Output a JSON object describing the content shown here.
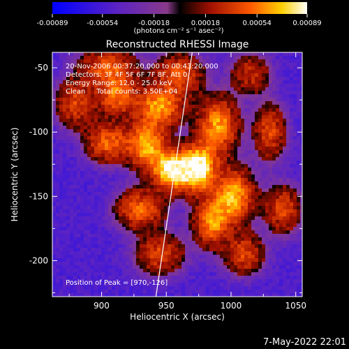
{
  "chart_data": {
    "type": "heatmap",
    "title": "Reconstructed RHESSI Image",
    "xlabel": "Heliocentric X (arcsec)",
    "ylabel": "Heliocentric Y (arcsec)",
    "xlim": [
      862,
      1055
    ],
    "ylim": [
      -228,
      -38
    ],
    "xticks": [
      900,
      950,
      1000,
      1050
    ],
    "xtick_labels": [
      "900",
      "950",
      "1000",
      "1050"
    ],
    "yticks": [
      -50,
      -100,
      -150,
      -200
    ],
    "ytick_labels": [
      "-50",
      "-100",
      "-150",
      "-200"
    ],
    "colorbar": {
      "min": -0.00089,
      "max": 0.00089,
      "ticks": [
        -0.00089,
        -0.00054,
        -0.00018,
        0.00018,
        0.00054,
        0.00089
      ],
      "tick_labels": [
        "-0.00089",
        "-0.00054",
        "-0.00018",
        "0.00018",
        "0.00054",
        "0.00089"
      ],
      "unit_label": "(photons cm⁻² s⁻¹ asec⁻²)"
    },
    "annotations": [
      "20-Nov-2006 00:37:20.000 to 00:43:20.000",
      "Detectors: 3F 4F 5F 6F 7F 8F, Att 0",
      "Energy Range: 12.0 - 25.0 keV",
      "Clean     Total counts: 3.50E+04"
    ],
    "peak_label": "Position of Peak = [970,-126]",
    "peak": [
      970,
      -126
    ],
    "sources": [
      {
        "x": 955,
        "y": -130,
        "amp": 1.0,
        "sx": 10,
        "sy": 10
      },
      {
        "x": 975,
        "y": -128,
        "amp": 1.0,
        "sx": 9,
        "sy": 12
      },
      {
        "x": 935,
        "y": -110,
        "amp": 0.75,
        "sx": 10,
        "sy": 12
      },
      {
        "x": 945,
        "y": -80,
        "amp": 0.7,
        "sx": 12,
        "sy": 10
      },
      {
        "x": 912,
        "y": -72,
        "amp": 0.55,
        "sx": 10,
        "sy": 10
      },
      {
        "x": 905,
        "y": -108,
        "amp": 0.55,
        "sx": 11,
        "sy": 10
      },
      {
        "x": 880,
        "y": -78,
        "amp": 0.45,
        "sx": 10,
        "sy": 12
      },
      {
        "x": 990,
        "y": -95,
        "amp": 0.7,
        "sx": 10,
        "sy": 14
      },
      {
        "x": 1002,
        "y": -150,
        "amp": 0.75,
        "sx": 10,
        "sy": 14
      },
      {
        "x": 985,
        "y": -170,
        "amp": 0.65,
        "sx": 9,
        "sy": 12
      },
      {
        "x": 1010,
        "y": -195,
        "amp": 0.45,
        "sx": 10,
        "sy": 10
      },
      {
        "x": 1030,
        "y": -100,
        "amp": 0.45,
        "sx": 8,
        "sy": 14
      },
      {
        "x": 930,
        "y": -160,
        "amp": 0.55,
        "sx": 12,
        "sy": 10
      },
      {
        "x": 945,
        "y": -195,
        "amp": 0.45,
        "sx": 12,
        "sy": 10
      },
      {
        "x": 1040,
        "y": -160,
        "amp": 0.45,
        "sx": 9,
        "sy": 12
      },
      {
        "x": 905,
        "y": -50,
        "amp": 0.5,
        "sx": 14,
        "sy": 10
      },
      {
        "x": 960,
        "y": -55,
        "amp": 0.5,
        "sx": 12,
        "sy": 10
      },
      {
        "x": 1015,
        "y": -55,
        "amp": 0.35,
        "sx": 10,
        "sy": 10
      }
    ],
    "limb_line": [
      [
        942,
        -228
      ],
      [
        970,
        -38
      ]
    ],
    "grid": false
  },
  "footer": {
    "date": "7-May-2022 22:01"
  }
}
